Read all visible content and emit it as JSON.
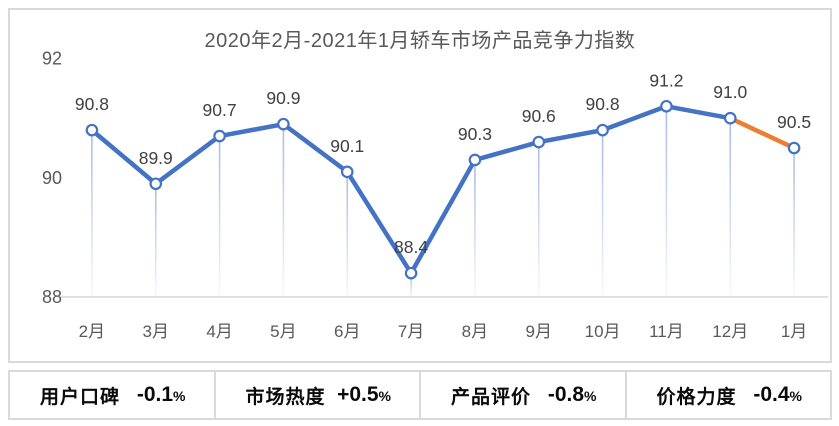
{
  "chart_data": {
    "type": "line",
    "title": "2020年2月-2021年1月轿车市场产品竞争力指数",
    "categories": [
      "2月",
      "3月",
      "4月",
      "5月",
      "6月",
      "7月",
      "8月",
      "9月",
      "10月",
      "11月",
      "12月",
      "1月"
    ],
    "values": [
      90.8,
      89.9,
      90.7,
      90.9,
      90.1,
      88.4,
      90.3,
      90.6,
      90.8,
      91.2,
      91.0,
      90.5
    ],
    "value_labels": [
      "90.8",
      "89.9",
      "90.7",
      "90.9",
      "90.1",
      "88.4",
      "90.3",
      "90.6",
      "90.8",
      "91.2",
      "91.0",
      "90.5"
    ],
    "ylim": [
      88,
      92
    ],
    "yticks": [
      "88",
      "90",
      "92"
    ],
    "grid": false,
    "legend_position": "none",
    "line_color": "#4472C4",
    "last_segment_color": "#ED7D31",
    "marker_fill": "#FFFFFF",
    "marker_stroke": "#4472C4",
    "drop_line_color": "#6385C6",
    "axis_color": "#D6D6D6",
    "tick_label_color": "#595959",
    "data_label_color": "#404040"
  },
  "stats": [
    {
      "label": "用户口碑",
      "value": "-0.1",
      "unit": "%"
    },
    {
      "label": "市场热度",
      "value": "+0.5",
      "unit": "%"
    },
    {
      "label": "产品评价",
      "value": "-0.8",
      "unit": "%"
    },
    {
      "label": "价格力度",
      "value": "-0.4",
      "unit": "%"
    }
  ]
}
